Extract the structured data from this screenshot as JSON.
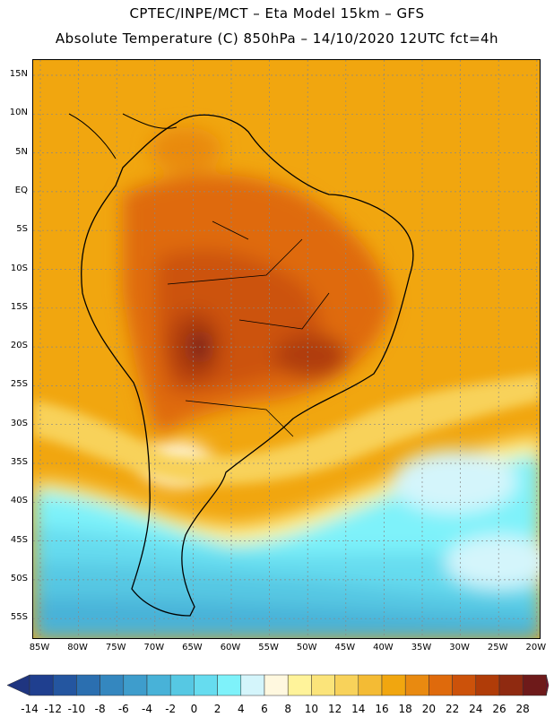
{
  "title_line1": "CPTEC/INPE/MCT –  Eta Model 15km – GFS",
  "title_line2": "Absolute Temperature (C) 850hPa – 14/10/2020 12UTC fct=4h",
  "lat_labels": [
    "15N",
    "10N",
    "5N",
    "EQ",
    "5S",
    "10S",
    "15S",
    "20S",
    "25S",
    "30S",
    "35S",
    "40S",
    "45S",
    "50S",
    "55S"
  ],
  "lon_labels": [
    "85W",
    "80W",
    "75W",
    "70W",
    "65W",
    "60W",
    "55W",
    "50W",
    "45W",
    "40W",
    "35W",
    "30W",
    "25W",
    "20W"
  ],
  "colorbar": {
    "labels": [
      "-14",
      "-12",
      "-10",
      "-8",
      "-6",
      "-4",
      "-2",
      "0",
      "2",
      "4",
      "6",
      "8",
      "10",
      "12",
      "14",
      "16",
      "18",
      "20",
      "22",
      "24",
      "26",
      "28"
    ],
    "colors": [
      "#1f3f8f",
      "#2456a0",
      "#2b6fb0",
      "#3487bf",
      "#3e9dcc",
      "#48b2d8",
      "#56c8e3",
      "#66dcef",
      "#7ef2fa",
      "#d4f5fb",
      "#fff8df",
      "#fff39a",
      "#fbe47a",
      "#f8d25a",
      "#f4bb34",
      "#f1a60f",
      "#e98a10",
      "#df6a0c",
      "#cc520a",
      "#b03c08",
      "#8f2a10",
      "#6e1a1a"
    ],
    "under_color": "#1f3580",
    "over_color": "#7a0f2a"
  }
}
